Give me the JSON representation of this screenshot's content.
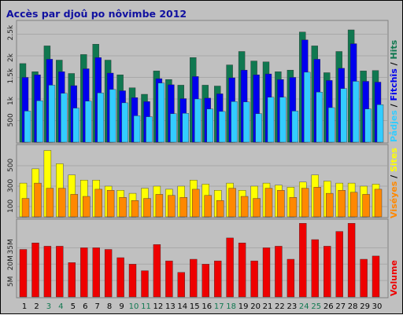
{
  "title": "Accès par djoû po nôvimbe 2012",
  "colors": {
    "background": "#c0c0c0",
    "panel": "#c0c0c0",
    "grid": "#a8a8a8",
    "pages": "#33ccff",
    "files": "#0000ee",
    "hits": "#107850",
    "visits": "#ff8800",
    "sites": "#ffff00",
    "volume": "#ee0000",
    "weekend_day": "#107850",
    "weekday_day": "#000000",
    "today_day": "#107850"
  },
  "legend": {
    "top": [
      {
        "label": "Pådjes",
        "color": "#33ccff"
      },
      {
        "label": " / ",
        "color": "#000000"
      },
      {
        "label": "Fitchîs",
        "color": "#0000ee"
      },
      {
        "label": " / ",
        "color": "#000000"
      },
      {
        "label": "Hits",
        "color": "#107850"
      }
    ],
    "middle": [
      {
        "label": "Viséyes",
        "color": "#ff8800"
      },
      {
        "label": " / ",
        "color": "#000000"
      },
      {
        "label": "Sites",
        "color": "#ffff00"
      }
    ],
    "bottom": [
      {
        "label": "Volume",
        "color": "#ee0000"
      }
    ]
  },
  "chart_data": {
    "type": "bar",
    "x": [
      "1",
      "2",
      "3",
      "4",
      "5",
      "6",
      "7",
      "8",
      "9",
      "10",
      "11",
      "12",
      "13",
      "14",
      "15",
      "16",
      "17",
      "18",
      "19",
      "20",
      "21",
      "22",
      "23",
      "24",
      "25",
      "26",
      "27",
      "28",
      "29",
      "30"
    ],
    "weekend_days": [
      "3",
      "4",
      "10",
      "11",
      "17",
      "18",
      "24",
      "25"
    ],
    "panels": [
      {
        "name": "hits",
        "ylim": [
          0,
          2800
        ],
        "yticks": [
          500,
          1000,
          1500,
          2000,
          2500
        ],
        "ytick_labels": [
          "500",
          "1k",
          "1.5k",
          "2k",
          "2.5k"
        ],
        "series": [
          {
            "name": "Hits",
            "values": [
              1820,
              1630,
              2230,
              1900,
              1590,
              2030,
              2270,
              1900,
              1560,
              1260,
              1110,
              1650,
              1450,
              1320,
              1960,
              1320,
              1300,
              1790,
              2100,
              1880,
              1860,
              1630,
              1670,
              2550,
              2230,
              1610,
              2100,
              2600,
              1650,
              1660
            ]
          },
          {
            "name": "Fitchîs",
            "values": [
              1500,
              1560,
              1920,
              1630,
              1310,
              1700,
              1960,
              1600,
              1190,
              1030,
              940,
              1470,
              1330,
              1010,
              1520,
              1020,
              1120,
              1490,
              1670,
              1560,
              1580,
              1450,
              1500,
              2370,
              1920,
              1430,
              1710,
              2280,
              1410,
              1390
            ]
          },
          {
            "name": "Pådjes",
            "values": [
              720,
              960,
              1320,
              1130,
              790,
              950,
              1140,
              1220,
              910,
              610,
              590,
              1370,
              660,
              670,
              1000,
              770,
              710,
              940,
              930,
              660,
              1040,
              1040,
              720,
              1620,
              1160,
              800,
              1240,
              1410,
              770,
              870
            ]
          }
        ]
      },
      {
        "name": "visits",
        "ylim": [
          0,
          700
        ],
        "yticks": [
          100,
          300,
          500
        ],
        "ytick_labels": [
          "100",
          "300",
          "500"
        ],
        "series": [
          {
            "name": "Sites",
            "values": [
              330,
              470,
              650,
              520,
              410,
              360,
              360,
              300,
              260,
              230,
              280,
              300,
              270,
              300,
              360,
              320,
              260,
              330,
              260,
              300,
              330,
              310,
              290,
              340,
              410,
              350,
              330,
              330,
              300,
              320
            ]
          },
          {
            "name": "Viséyes",
            "values": [
              180,
              330,
              280,
              280,
              220,
              200,
              270,
              260,
              190,
              160,
              180,
              220,
              210,
              190,
              270,
              210,
              160,
              280,
              200,
              180,
              280,
              260,
              190,
              280,
              290,
              230,
              260,
              240,
              220,
              270
            ]
          }
        ]
      },
      {
        "name": "volume",
        "ylim": [
          0,
          4.7
        ],
        "yticks": [
          1,
          2,
          3
        ],
        "ytick_labels": [
          "5M",
          "20M",
          "35M"
        ],
        "series": [
          {
            "name": "Volume",
            "values": [
              2.9,
              3.3,
              3.1,
              3.1,
              2.1,
              3.0,
              3.0,
              2.9,
              2.4,
              2.0,
              1.6,
              3.2,
              2.2,
              1.5,
              2.3,
              2.0,
              2.2,
              3.6,
              3.3,
              2.2,
              3.0,
              3.1,
              2.3,
              4.5,
              3.5,
              3.1,
              4.0,
              4.5,
              2.3,
              2.5
            ]
          }
        ]
      }
    ]
  }
}
